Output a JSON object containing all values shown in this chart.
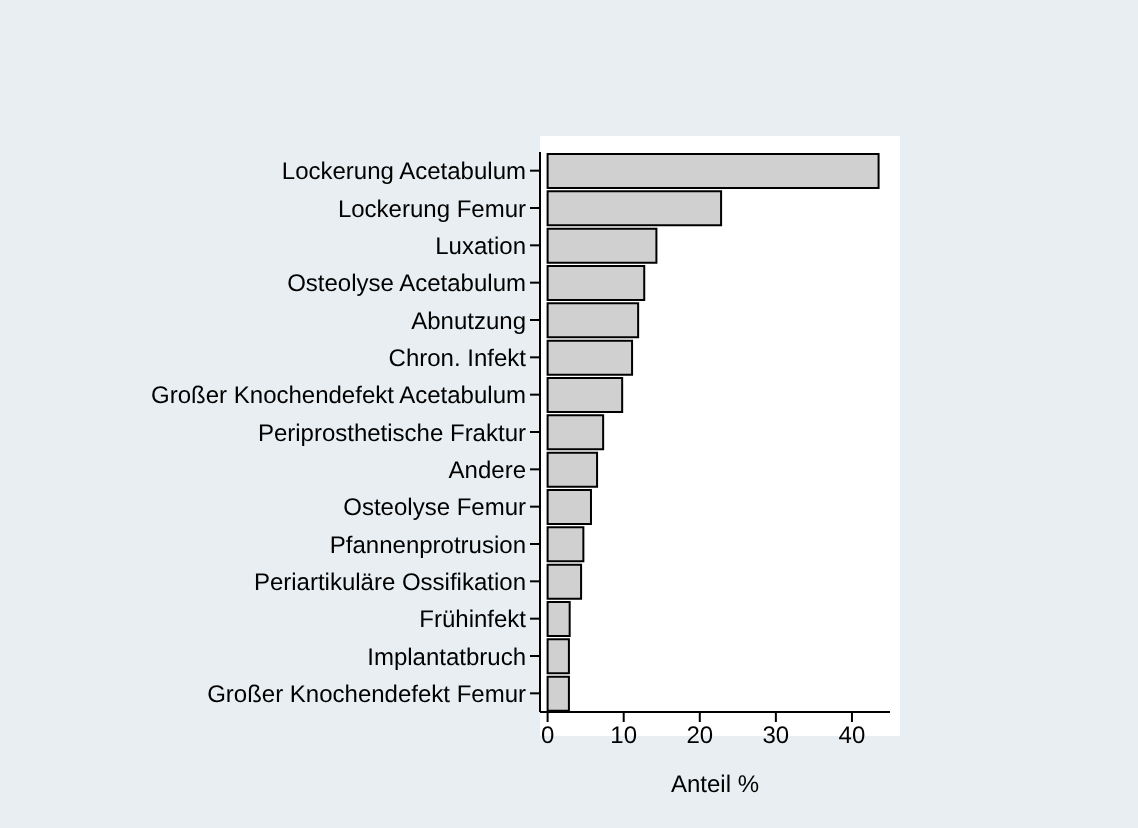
{
  "chart_data": {
    "type": "bar",
    "orientation": "horizontal",
    "xlabel": "Anteil %",
    "categories": [
      "Lockerung Acetabulum",
      "Lockerung Femur",
      "Luxation",
      "Osteolyse Acetabulum",
      "Abnutzung",
      "Chron. Infekt",
      "Großer Knochendefekt Acetabulum",
      "Periprosthetische Fraktur",
      "Andere",
      "Osteolyse Femur",
      "Pfannenprotrusion",
      "Periartikuläre Ossifikation",
      "Frühinfekt",
      "Implantatbruch",
      "Großer Knochendefekt Femur"
    ],
    "values": [
      43.5,
      22.8,
      14.3,
      12.7,
      11.9,
      11.1,
      9.8,
      7.3,
      6.5,
      5.7,
      4.7,
      4.4,
      2.9,
      2.8,
      2.8
    ],
    "color": "#d0d0d0",
    "xlim": [
      -1,
      45
    ],
    "xticks": [
      0,
      10,
      20,
      30,
      40
    ],
    "grid": false,
    "legend": false
  }
}
